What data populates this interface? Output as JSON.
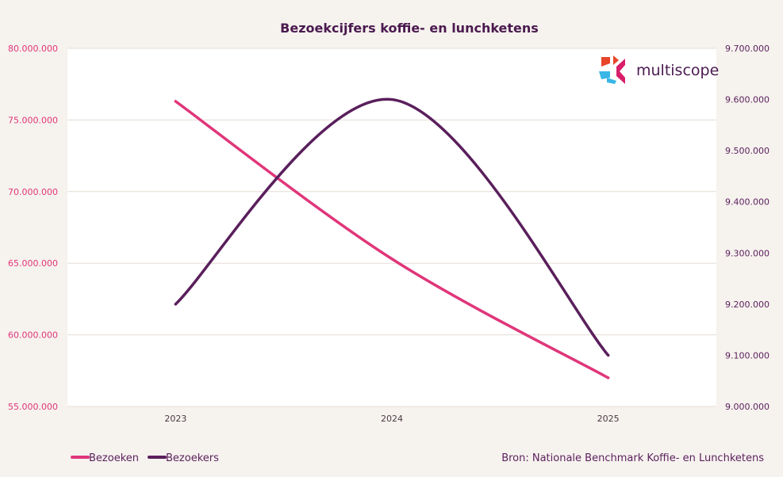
{
  "chart_data": {
    "type": "line",
    "title": "Bezoekcijfers koffie- en lunchketens",
    "categories": [
      "2023",
      "2024",
      "2025"
    ],
    "series": [
      {
        "name": "Bezoeken",
        "axis": "left",
        "color": "#e0367a",
        "values": [
          76300000,
          65300000,
          57000000
        ]
      },
      {
        "name": "Bezoekers",
        "axis": "right",
        "color": "#5a1f5c",
        "values": [
          9200000,
          9600000,
          9100000
        ]
      }
    ],
    "y_left": {
      "range": [
        55000000,
        80000000
      ],
      "ticks": [
        "55.000.000",
        "60.000.000",
        "65.000.000",
        "70.000.000",
        "75.000.000",
        "80.000.000"
      ]
    },
    "y_right": {
      "range": [
        9000000,
        9700000
      ],
      "ticks": [
        "9.000.000",
        "9.100.000",
        "9.200.000",
        "9.300.000",
        "9.400.000",
        "9.500.000",
        "9.600.000",
        "9.700.000"
      ]
    },
    "smooth": true,
    "grid": true,
    "legend": "bottom-left",
    "source": "Bron: Nationale Benchmark Koffie- en Lunchketens",
    "logo": "multiscope"
  }
}
